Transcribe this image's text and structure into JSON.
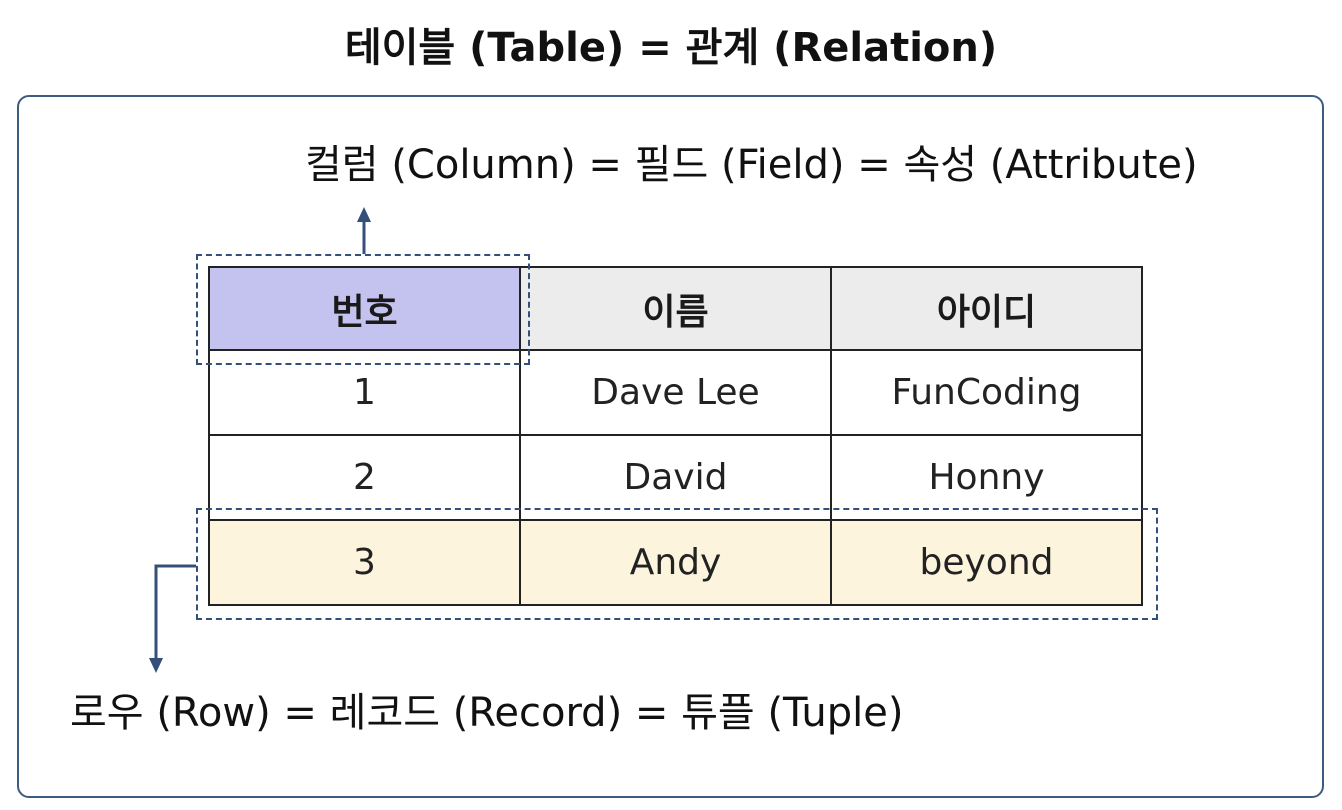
{
  "title": "테이블 (Table) = 관계 (Relation)",
  "column_caption": "컬럼 (Column) = 필드 (Field) = 속성 (Attribute)",
  "row_caption": "로우 (Row) = 레코드 (Record) = 튜플 (Tuple)",
  "table": {
    "headers": [
      "번호",
      "이름",
      "아이디"
    ],
    "rows": [
      [
        "1",
        "Dave Lee",
        "FunCoding"
      ],
      [
        "2",
        "David",
        "Honny"
      ],
      [
        "3",
        "Andy",
        "beyond"
      ]
    ]
  },
  "colors": {
    "frame": "#3d5a80",
    "arrow": "#34507a",
    "column_highlight": "#c4c2ee",
    "row_highlight": "#fcf4dd",
    "header_background": "#ececec"
  }
}
